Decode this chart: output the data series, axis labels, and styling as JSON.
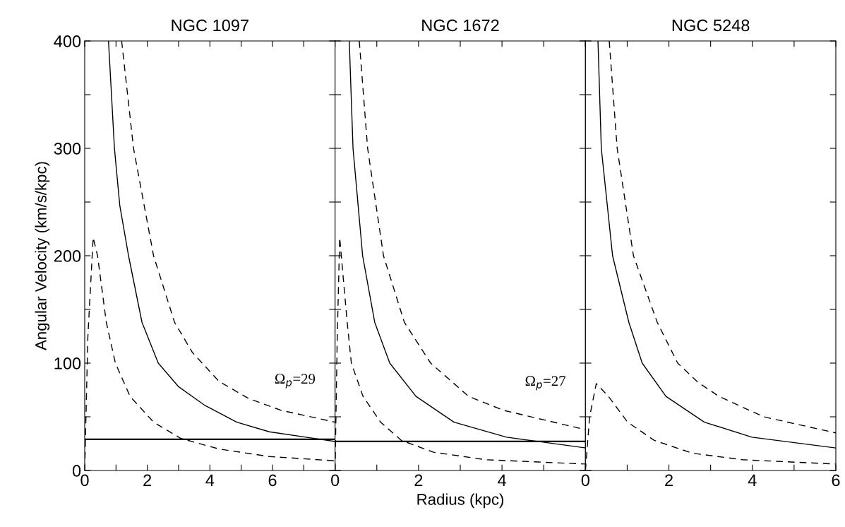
{
  "chart_data": [
    {
      "type": "line",
      "title": "NGC 1097",
      "ylabel": "Angular Velocity (km/s/kpc)",
      "xlim": [
        0,
        8
      ],
      "ylim": [
        0,
        400
      ],
      "xticks": [
        0,
        {
          "value": 1,
          "label": null
        },
        2,
        {
          "value": 3,
          "label": null
        },
        4,
        {
          "value": 5,
          "label": null
        },
        6,
        {
          "value": 7,
          "label": null
        },
        {
          "value": 8,
          "label": null
        }
      ],
      "yticks": [
        0,
        {
          "value": 50,
          "label": null
        },
        100,
        {
          "value": 150,
          "label": null
        },
        200,
        {
          "value": 250,
          "label": null
        },
        300,
        {
          "value": 350,
          "label": null
        },
        400
      ],
      "series": [
        {
          "color": "#000000",
          "line_style": "solid",
          "x": [
            0.76,
            0.95,
            1.12,
            1.4,
            1.83,
            2.35,
            3.0,
            3.82,
            4.86,
            5.9,
            7.3,
            8
          ],
          "values": [
            400,
            300,
            247,
            200,
            138,
            100,
            78,
            61,
            45,
            36,
            30,
            27
          ]
        },
        {
          "color": "#000000",
          "line_style": "dashed",
          "x": [
            1.18,
            1.56,
            2.2,
            2.87,
            3.44,
            4.29,
            5.24,
            6.28,
            8
          ],
          "values": [
            400,
            300,
            200,
            138,
            110,
            83,
            67,
            56,
            45
          ]
        },
        {
          "color": "#000000",
          "line_style": "dashed",
          "x": [
            0,
            0.1,
            0.27,
            0.41,
            0.69,
            0.98,
            1.45,
            2.2,
            3.06,
            4.29,
            5.9,
            8
          ],
          "values": [
            0,
            124,
            217,
            200,
            138,
            100,
            69,
            45,
            30,
            20,
            13,
            9
          ]
        }
      ],
      "ref_lines": [
        {
          "axis": "y",
          "value": 29,
          "color": "#000000",
          "line_style": "solid",
          "label": "Ω$_{p}$=29"
        }
      ],
      "grid": false,
      "legend": false
    },
    {
      "type": "line",
      "title": "NGC 1672",
      "xlabel": "Radius (kpc)",
      "xlim": [
        0,
        6
      ],
      "ylim": [
        0,
        400
      ],
      "tick_labels": "x",
      "xticks": [
        0,
        {
          "value": 1,
          "label": null
        },
        2,
        {
          "value": 3,
          "label": null
        },
        4,
        {
          "value": 5,
          "label": null
        },
        {
          "value": 6,
          "label": null
        }
      ],
      "yticks": [
        {
          "value": 0,
          "label": null
        },
        {
          "value": 50,
          "label": null
        },
        {
          "value": 100,
          "label": null
        },
        {
          "value": 150,
          "label": null
        },
        {
          "value": 200,
          "label": null
        },
        {
          "value": 250,
          "label": null
        },
        {
          "value": 300,
          "label": null
        },
        {
          "value": 350,
          "label": null
        },
        {
          "value": 400,
          "label": null
        }
      ],
      "series": [
        {
          "color": "#000000",
          "line_style": "solid",
          "x": [
            0.34,
            0.43,
            0.66,
            0.95,
            1.31,
            1.94,
            2.85,
            4.11,
            6
          ],
          "values": [
            400,
            300,
            200,
            138,
            100,
            69,
            45,
            31,
            21
          ]
        },
        {
          "color": "#000000",
          "line_style": "dashed",
          "x": [
            0.58,
            0.78,
            1.16,
            1.66,
            2.29,
            3.2,
            4.04,
            6
          ],
          "values": [
            400,
            300,
            200,
            138,
            100,
            69,
            56,
            38
          ]
        },
        {
          "color": "#000000",
          "line_style": "dashed",
          "x": [
            0,
            0.05,
            0.11,
            0.29,
            0.39,
            0.67,
            1.09,
            1.59,
            2.36,
            3.62,
            6
          ],
          "values": [
            0,
            120,
            217,
            138,
            100,
            69,
            45,
            28,
            17,
            10,
            6
          ]
        }
      ],
      "ref_lines": [
        {
          "axis": "y",
          "value": 27,
          "color": "#000000",
          "line_style": "solid",
          "label": "Ω$_{p}$=27"
        }
      ],
      "grid": false,
      "legend": false
    },
    {
      "type": "line",
      "title": "NGC 5248",
      "xlim": [
        0,
        6
      ],
      "ylim": [
        0,
        400
      ],
      "tick_labels": "x",
      "xticks": [
        0,
        {
          "value": 1,
          "label": null
        },
        2,
        {
          "value": 3,
          "label": null
        },
        4,
        {
          "value": 5,
          "label": null
        },
        6
      ],
      "yticks": [
        {
          "value": 0,
          "label": null
        },
        {
          "value": 50,
          "label": null
        },
        {
          "value": 100,
          "label": null
        },
        {
          "value": 150,
          "label": null
        },
        {
          "value": 200,
          "label": null
        },
        {
          "value": 250,
          "label": null
        },
        {
          "value": 300,
          "label": null
        },
        {
          "value": 350,
          "label": null
        },
        {
          "value": 400,
          "label": null
        }
      ],
      "series": [
        {
          "color": "#000000",
          "line_style": "solid",
          "x": [
            0.3,
            0.38,
            0.65,
            1.04,
            1.36,
            1.93,
            2.85,
            3.99,
            6
          ],
          "values": [
            400,
            300,
            200,
            138,
            100,
            69,
            45,
            31,
            21
          ]
        },
        {
          "color": "#000000",
          "line_style": "dashed",
          "x": [
            0.57,
            0.76,
            1.15,
            1.72,
            2.21,
            2.7,
            3.2,
            4.27,
            6
          ],
          "values": [
            400,
            300,
            200,
            138,
            100,
            82,
            69,
            50,
            35
          ]
        },
        {
          "color": "#000000",
          "line_style": "dashed",
          "x": [
            0,
            0.1,
            0.26,
            0.55,
            1.01,
            1.65,
            2.57,
            3.77,
            6
          ],
          "values": [
            0,
            50,
            81,
            69,
            45,
            28,
            16,
            10,
            6
          ]
        }
      ],
      "grid": false,
      "legend": false
    }
  ]
}
